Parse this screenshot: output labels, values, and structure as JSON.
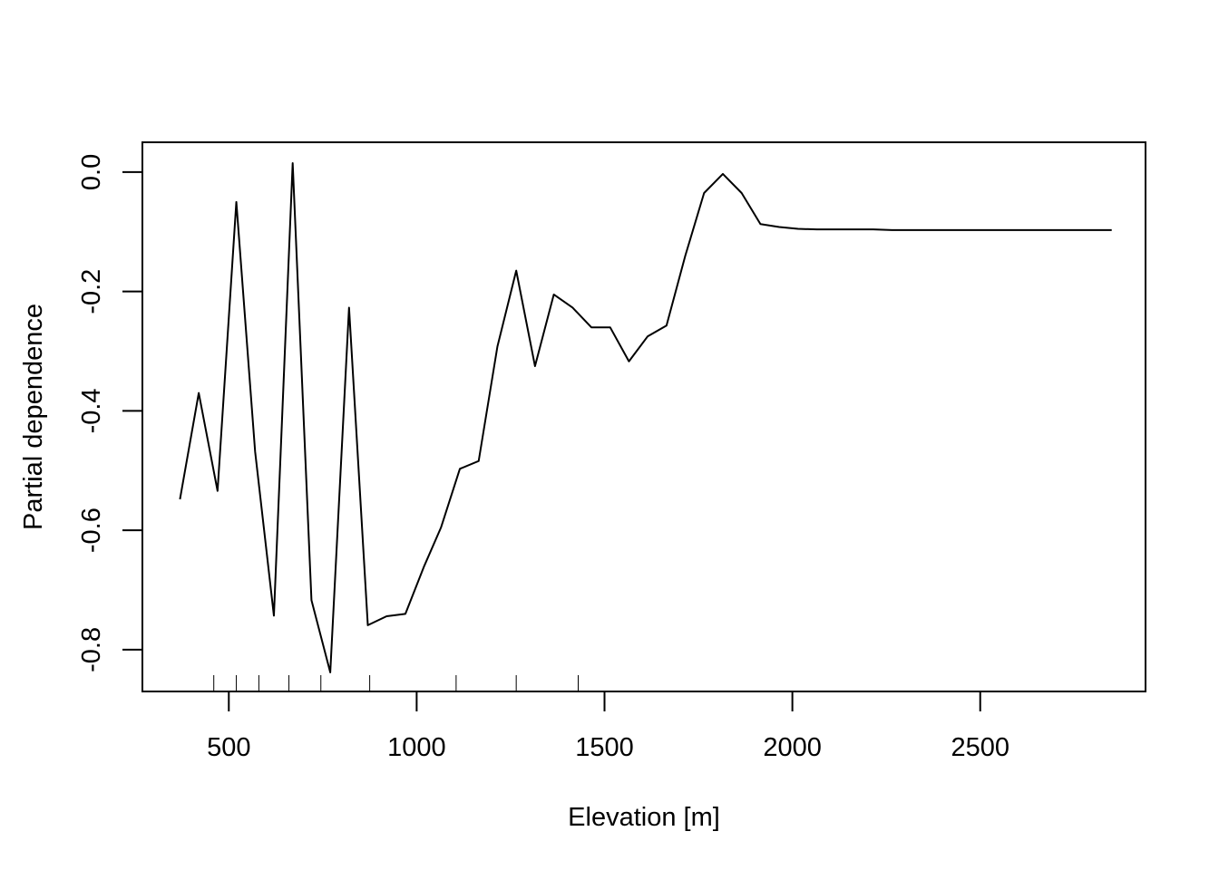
{
  "chart_data": {
    "type": "line",
    "title": "",
    "xlabel": "Elevation [m]",
    "ylabel": "Partial dependence",
    "xlim": [
      270,
      2940
    ],
    "ylim": [
      -0.87,
      0.05
    ],
    "x_ticks": [
      500,
      1000,
      1500,
      2000,
      2500
    ],
    "x_tick_labels": [
      "500",
      "1000",
      "1500",
      "2000",
      "2500"
    ],
    "y_ticks": [
      0.0,
      -0.2,
      -0.4,
      -0.6,
      -0.8
    ],
    "y_tick_labels": [
      "0.0",
      "-0.2",
      "-0.4",
      "-0.6",
      "-0.8"
    ],
    "grid": false,
    "legend": "none",
    "line_color": "#000000",
    "series": [
      {
        "x": [
          370,
          420,
          470,
          520,
          570,
          620,
          670,
          720,
          770,
          820,
          870,
          920,
          970,
          1020,
          1065,
          1115,
          1165,
          1215,
          1265,
          1315,
          1365,
          1415,
          1465,
          1515,
          1565,
          1615,
          1665,
          1715,
          1765,
          1815,
          1865,
          1915,
          1965,
          2015,
          2065,
          2115,
          2165,
          2215,
          2265,
          2315,
          2365,
          2415,
          2465,
          2515,
          2565,
          2615,
          2665,
          2715,
          2765,
          2815,
          2850
        ],
        "y": [
          -0.548,
          -0.37,
          -0.534,
          -0.05,
          -0.468,
          -0.743,
          0.015,
          -0.717,
          -0.838,
          -0.227,
          -0.759,
          -0.744,
          -0.74,
          -0.66,
          -0.595,
          -0.497,
          -0.484,
          -0.292,
          -0.165,
          -0.325,
          -0.205,
          -0.227,
          -0.26,
          -0.26,
          -0.317,
          -0.275,
          -0.257,
          -0.14,
          -0.035,
          -0.003,
          -0.035,
          -0.087,
          -0.092,
          -0.095,
          -0.096,
          -0.096,
          -0.096,
          -0.096,
          -0.097,
          -0.097,
          -0.097,
          -0.097,
          -0.097,
          -0.097,
          -0.097,
          -0.097,
          -0.097,
          -0.097,
          -0.097,
          -0.097,
          -0.097
        ]
      }
    ],
    "rug": [
      460,
      520,
      580,
      660,
      745,
      875,
      1105,
      1265,
      1430
    ]
  }
}
